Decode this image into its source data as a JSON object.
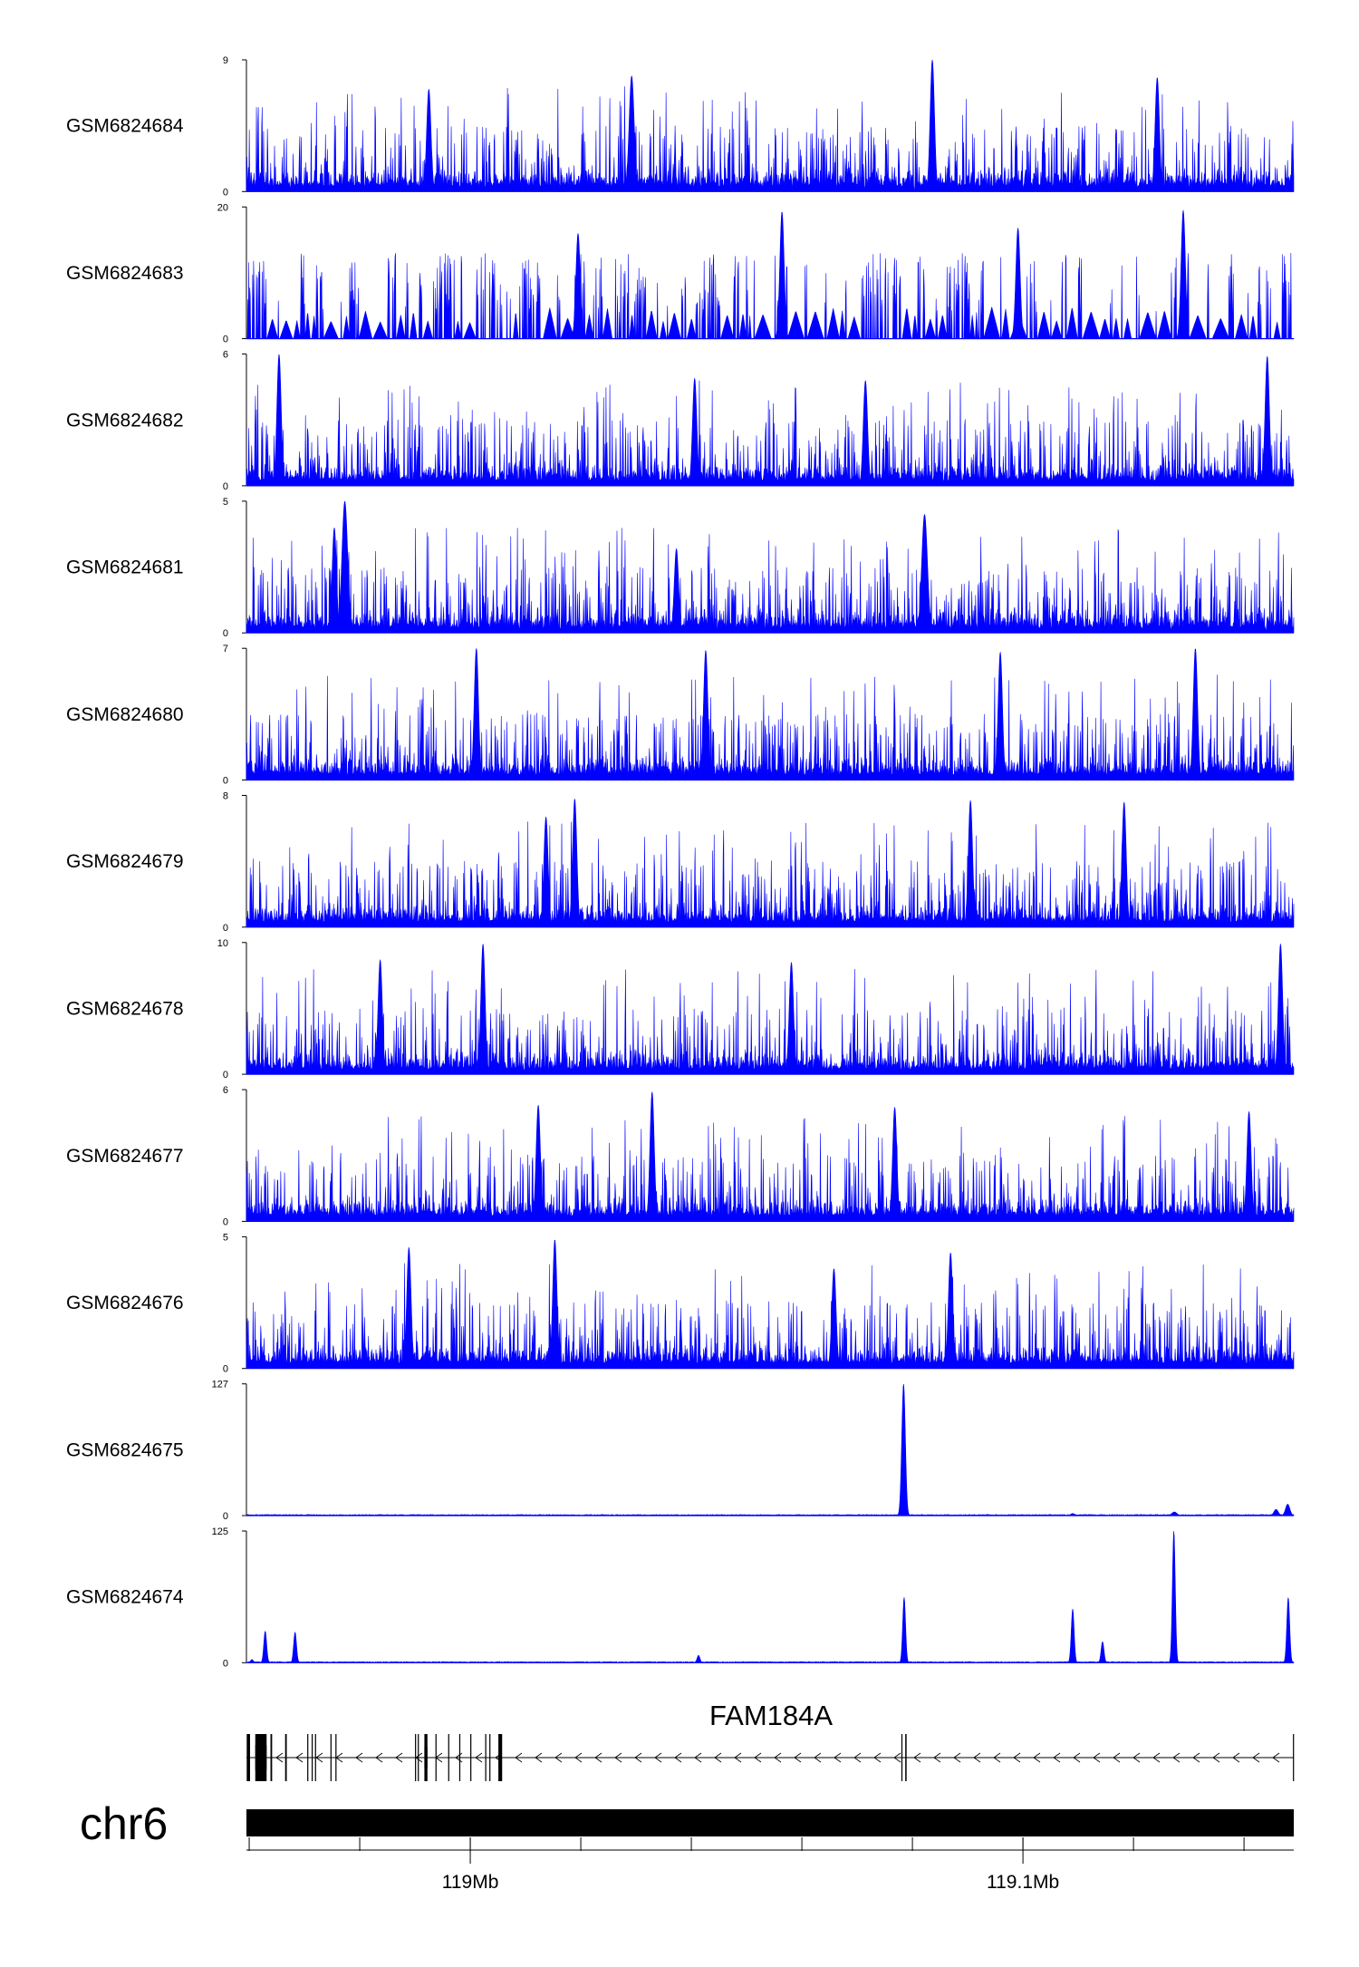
{
  "chart_data": {
    "type": "area",
    "title": "",
    "xlabel": "",
    "ylabel": "",
    "chromosome": "chr6",
    "x_range_mb": [
      118.9595,
      119.149
    ],
    "x_ticks": [
      {
        "pos_mb": 119.0,
        "label": "119Mb"
      },
      {
        "pos_mb": 119.1,
        "label": "119.1Mb"
      }
    ],
    "minor_tick_step_mb": 0.02,
    "series_color": "#0000ff",
    "tracks": [
      {
        "name": "GSM6824684",
        "ymin": 0,
        "ymax": 9,
        "ymin_label": "0",
        "ymax_label": "9",
        "profile": "noise",
        "baseline": 0.12,
        "peaks": [
          {
            "pos_mb": 119.0292,
            "height": 7.9,
            "width_mb": 0.0007
          },
          {
            "pos_mb": 119.0836,
            "height": 9.0,
            "width_mb": 0.0006
          },
          {
            "pos_mb": 119.1243,
            "height": 7.8,
            "width_mb": 0.0006
          },
          {
            "pos_mb": 118.9925,
            "height": 7.0,
            "width_mb": 0.0006
          }
        ]
      },
      {
        "name": "GSM6824683",
        "ymin": 0,
        "ymax": 20,
        "ymin_label": "0",
        "ymax_label": "20",
        "profile": "sparse",
        "baseline": 0.05,
        "peaks": [
          {
            "pos_mb": 119.0564,
            "height": 19.3,
            "width_mb": 0.0006
          },
          {
            "pos_mb": 119.129,
            "height": 19.5,
            "width_mb": 0.0006
          },
          {
            "pos_mb": 119.0195,
            "height": 16.0,
            "width_mb": 0.0006
          },
          {
            "pos_mb": 119.0991,
            "height": 16.8,
            "width_mb": 0.0006
          }
        ]
      },
      {
        "name": "GSM6824682",
        "ymin": 0,
        "ymax": 6,
        "ymin_label": "0",
        "ymax_label": "6",
        "profile": "noise",
        "baseline": 0.25,
        "peaks": [
          {
            "pos_mb": 118.9654,
            "height": 6.0,
            "width_mb": 0.0006
          },
          {
            "pos_mb": 119.1442,
            "height": 5.9,
            "width_mb": 0.0006
          },
          {
            "pos_mb": 119.0406,
            "height": 4.9,
            "width_mb": 0.0006
          },
          {
            "pos_mb": 119.0715,
            "height": 4.8,
            "width_mb": 0.0006
          }
        ]
      },
      {
        "name": "GSM6824681",
        "ymin": 0,
        "ymax": 5,
        "ymin_label": "0",
        "ymax_label": "5",
        "profile": "noise",
        "baseline": 0.1,
        "peaks": [
          {
            "pos_mb": 118.9773,
            "height": 5.0,
            "width_mb": 0.0008
          },
          {
            "pos_mb": 119.0822,
            "height": 4.5,
            "width_mb": 0.0008
          },
          {
            "pos_mb": 118.9754,
            "height": 4.0,
            "width_mb": 0.0006
          },
          {
            "pos_mb": 119.0373,
            "height": 3.2,
            "width_mb": 0.0006
          }
        ]
      },
      {
        "name": "GSM6824680",
        "ymin": 0,
        "ymax": 7,
        "ymin_label": "0",
        "ymax_label": "7",
        "profile": "noise",
        "baseline": 0.3,
        "peaks": [
          {
            "pos_mb": 119.0011,
            "height": 7.0,
            "width_mb": 0.0006
          },
          {
            "pos_mb": 119.0426,
            "height": 6.9,
            "width_mb": 0.0006
          },
          {
            "pos_mb": 119.1312,
            "height": 7.0,
            "width_mb": 0.0006
          },
          {
            "pos_mb": 119.0959,
            "height": 6.8,
            "width_mb": 0.0006
          }
        ]
      },
      {
        "name": "GSM6824679",
        "ymin": 0,
        "ymax": 8,
        "ymin_label": "0",
        "ymax_label": "8",
        "profile": "noise",
        "baseline": 0.3,
        "peaks": [
          {
            "pos_mb": 119.0189,
            "height": 7.8,
            "width_mb": 0.0006
          },
          {
            "pos_mb": 119.0905,
            "height": 7.7,
            "width_mb": 0.0006
          },
          {
            "pos_mb": 119.1183,
            "height": 7.6,
            "width_mb": 0.0006
          },
          {
            "pos_mb": 119.0137,
            "height": 6.7,
            "width_mb": 0.0006
          }
        ]
      },
      {
        "name": "GSM6824678",
        "ymin": 0,
        "ymax": 10,
        "ymin_label": "0",
        "ymax_label": "10",
        "profile": "noise",
        "baseline": 0.3,
        "peaks": [
          {
            "pos_mb": 119.0023,
            "height": 9.9,
            "width_mb": 0.0006
          },
          {
            "pos_mb": 119.1466,
            "height": 9.9,
            "width_mb": 0.0006
          },
          {
            "pos_mb": 119.0581,
            "height": 8.5,
            "width_mb": 0.0006
          },
          {
            "pos_mb": 118.9837,
            "height": 8.7,
            "width_mb": 0.0006
          }
        ]
      },
      {
        "name": "GSM6824677",
        "ymin": 0,
        "ymax": 6,
        "ymin_label": "0",
        "ymax_label": "6",
        "profile": "noise",
        "baseline": 0.35,
        "peaks": [
          {
            "pos_mb": 119.0329,
            "height": 5.9,
            "width_mb": 0.0006
          },
          {
            "pos_mb": 119.0768,
            "height": 5.2,
            "width_mb": 0.0006
          },
          {
            "pos_mb": 119.1409,
            "height": 5.0,
            "width_mb": 0.0006
          },
          {
            "pos_mb": 119.0123,
            "height": 5.3,
            "width_mb": 0.0006
          }
        ]
      },
      {
        "name": "GSM6824676",
        "ymin": 0,
        "ymax": 5,
        "ymin_label": "0",
        "ymax_label": "5",
        "profile": "noise",
        "baseline": 0.25,
        "peaks": [
          {
            "pos_mb": 119.0153,
            "height": 4.9,
            "width_mb": 0.0006
          },
          {
            "pos_mb": 118.9889,
            "height": 4.6,
            "width_mb": 0.0006
          },
          {
            "pos_mb": 119.0869,
            "height": 4.4,
            "width_mb": 0.0006
          },
          {
            "pos_mb": 119.0658,
            "height": 3.8,
            "width_mb": 0.0006
          }
        ]
      },
      {
        "name": "GSM6824675",
        "ymin": 0,
        "ymax": 127,
        "ymin_label": "0",
        "ymax_label": "127",
        "profile": "smooth",
        "baseline": 0.7,
        "peaks": [
          {
            "pos_mb": 119.0784,
            "height": 127,
            "width_mb": 0.0005
          },
          {
            "pos_mb": 119.1479,
            "height": 11,
            "width_mb": 0.0006
          },
          {
            "pos_mb": 119.1458,
            "height": 6,
            "width_mb": 0.0006
          },
          {
            "pos_mb": 119.1274,
            "height": 3.5,
            "width_mb": 0.0007
          },
          {
            "pos_mb": 119.109,
            "height": 2,
            "width_mb": 0.0006
          }
        ]
      },
      {
        "name": "GSM6824674",
        "ymin": 0,
        "ymax": 125,
        "ymin_label": "0",
        "ymax_label": "125",
        "profile": "smooth",
        "baseline": 0.7,
        "peaks": [
          {
            "pos_mb": 119.1273,
            "height": 125,
            "width_mb": 0.0004
          },
          {
            "pos_mb": 119.148,
            "height": 62,
            "width_mb": 0.0004
          },
          {
            "pos_mb": 119.0785,
            "height": 62,
            "width_mb": 0.0004
          },
          {
            "pos_mb": 119.109,
            "height": 51,
            "width_mb": 0.0004
          },
          {
            "pos_mb": 118.9629,
            "height": 30,
            "width_mb": 0.0004
          },
          {
            "pos_mb": 118.9683,
            "height": 29,
            "width_mb": 0.0004
          },
          {
            "pos_mb": 119.1144,
            "height": 20,
            "width_mb": 0.0004
          },
          {
            "pos_mb": 119.0413,
            "height": 7,
            "width_mb": 0.0004
          },
          {
            "pos_mb": 118.9605,
            "height": 3,
            "width_mb": 0.0004
          }
        ]
      }
    ],
    "gene": {
      "name": "FAM184A",
      "strand": "-",
      "start_mb": 118.9595,
      "end_mb": 119.149,
      "exons_mb": [
        [
          118.95955,
          118.96015
        ],
        [
          118.9611,
          118.96315
        ],
        [
          118.96385,
          118.96415
        ],
        [
          118.9665,
          118.9668
        ],
        [
          118.9705,
          118.9707
        ],
        [
          118.9713,
          118.9715
        ],
        [
          118.9719,
          118.9721
        ],
        [
          118.9747,
          118.9749
        ],
        [
          118.9756,
          118.9758
        ],
        [
          118.99,
          118.9902
        ],
        [
          118.9905,
          118.9907
        ],
        [
          118.9917,
          118.99225
        ],
        [
          118.9937,
          118.9939
        ],
        [
          118.996,
          118.9962
        ],
        [
          118.998,
          118.9982
        ],
        [
          119.0,
          119.0002
        ],
        [
          119.0027,
          119.0029
        ],
        [
          119.00345,
          119.00365
        ],
        [
          119.0051,
          119.00575
        ],
        [
          119.078,
          119.0782
        ],
        [
          119.0787,
          119.07895
        ],
        [
          119.14885,
          119.149
        ]
      ]
    }
  }
}
